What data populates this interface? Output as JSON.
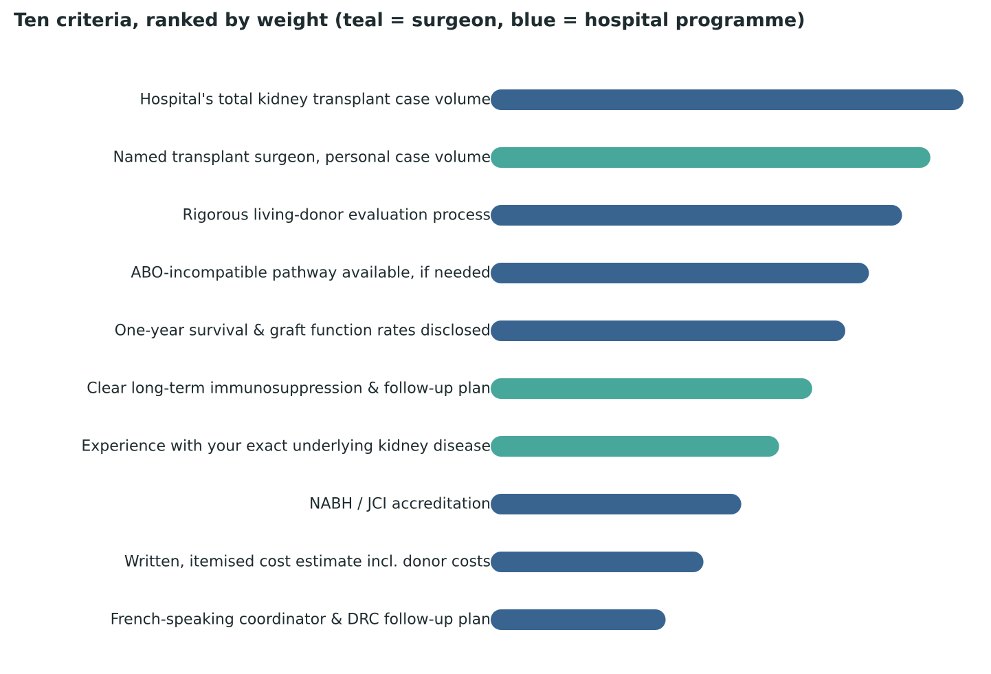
{
  "title": "Ten criteria, ranked by weight (teal = surgeon, blue = hospital programme)",
  "colors": {
    "hospital": "#3a6490",
    "surgeon": "#48a79b",
    "text": "#1e2b2f"
  },
  "chart_data": {
    "type": "bar",
    "orientation": "horizontal",
    "title": "Ten criteria, ranked by weight (teal = surgeon, blue = hospital programme)",
    "xlim": [
      0,
      100
    ],
    "grid": false,
    "categories": [
      "Hospital's total kidney transplant case volume",
      "Named transplant surgeon, personal case volume",
      "Rigorous living-donor evaluation process",
      "ABO-incompatible pathway available, if needed",
      "One-year survival & graft function rates disclosed",
      "Clear long-term immunosuppression & follow-up plan",
      "Experience with your exact underlying kidney disease",
      "NABH / JCI accreditation",
      "Written, itemised cost estimate incl. donor costs",
      "French-speaking coordinator & DRC follow-up plan"
    ],
    "values": [
      100,
      93,
      87,
      80,
      75,
      68,
      61,
      53,
      45,
      37
    ],
    "groups": [
      "hospital",
      "surgeon",
      "hospital",
      "hospital",
      "hospital",
      "surgeon",
      "surgeon",
      "hospital",
      "hospital",
      "hospital"
    ]
  }
}
